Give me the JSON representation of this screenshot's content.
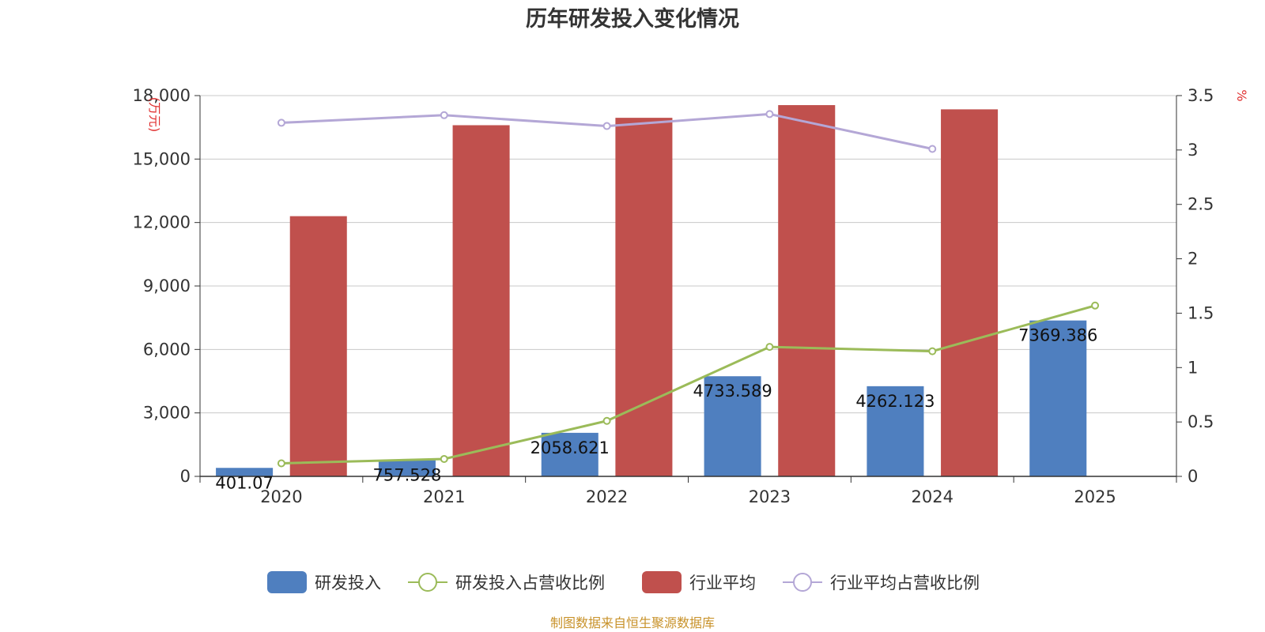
{
  "chart_data": {
    "type": "bar",
    "title": "历年研发投入变化情况",
    "categories": [
      "2020",
      "2021",
      "2022",
      "2023",
      "2024",
      "2025"
    ],
    "left_axis": {
      "unit": "(万元)",
      "ylim": [
        0,
        18000
      ],
      "ticks": [
        "0",
        "3,000",
        "6,000",
        "9,000",
        "12,000",
        "15,000",
        "18,000"
      ],
      "tick_values": [
        0,
        3000,
        6000,
        9000,
        12000,
        15000,
        18000
      ]
    },
    "right_axis": {
      "unit": "%",
      "ylim": [
        0,
        3.5
      ],
      "ticks": [
        "0",
        "0.5",
        "1",
        "1.5",
        "2",
        "2.5",
        "3",
        "3.5"
      ],
      "tick_values": [
        0,
        0.5,
        1,
        1.5,
        2,
        2.5,
        3,
        3.5
      ]
    },
    "series": [
      {
        "name": "研发投入",
        "kind": "bar",
        "axis": "left",
        "color": "#4f7fbf",
        "values": [
          401.07,
          757.528,
          2058.621,
          4733.589,
          4262.123,
          7369.386
        ],
        "labels": [
          "401.07",
          "757.528",
          "2058.621",
          "4733.589",
          "4262.123",
          "7369.386"
        ]
      },
      {
        "name": "研发投入占营收比例",
        "kind": "line",
        "axis": "right",
        "color": "#9bbb59",
        "values": [
          0.12,
          0.16,
          0.51,
          1.19,
          1.15,
          1.57
        ]
      },
      {
        "name": "行业平均",
        "kind": "bar",
        "axis": "left",
        "color": "#c0504d",
        "values": [
          12300,
          16600,
          16950,
          17550,
          17350,
          null
        ]
      },
      {
        "name": "行业平均占营收比例",
        "kind": "line",
        "axis": "right",
        "color": "#b4a7d6",
        "values": [
          3.25,
          3.32,
          3.22,
          3.33,
          3.01,
          null
        ]
      }
    ],
    "grid": true,
    "legend_position": "bottom-center"
  },
  "footer": {
    "source": "制图数据来自恒生聚源数据库"
  }
}
